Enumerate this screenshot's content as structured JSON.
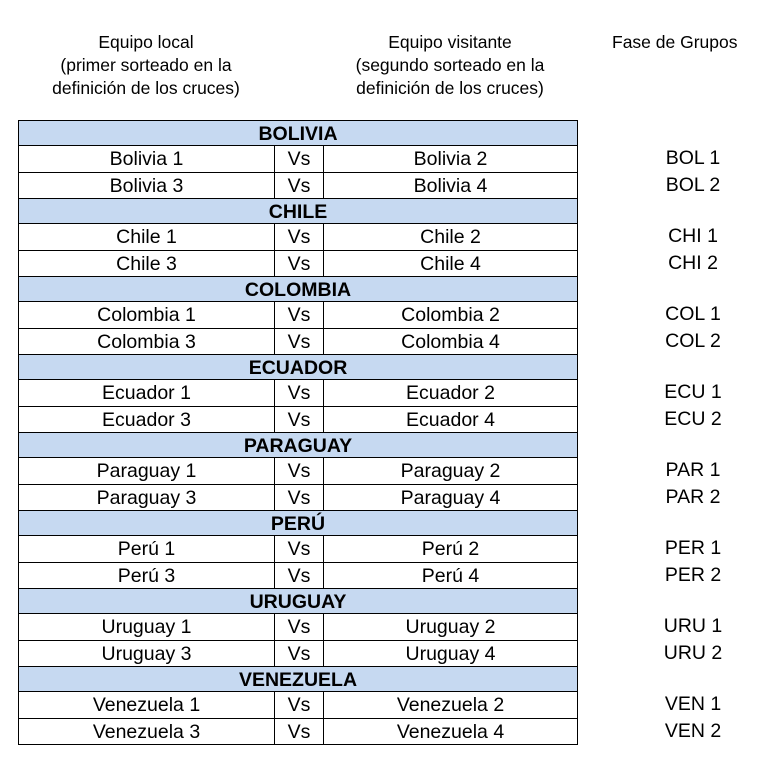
{
  "headers": {
    "home": [
      "Equipo local",
      "(primer sorteado en la",
      "definición de los cruces)"
    ],
    "away": [
      "Equipo visitante",
      "(segundo sorteado en la",
      "definición de los cruces)"
    ],
    "group": [
      "Fase de Grupos"
    ]
  },
  "vs_label": "Vs",
  "sections": [
    {
      "name": "BOLIVIA",
      "matches": [
        {
          "home": "Bolivia 1",
          "away": "Bolivia 2",
          "group": "BOL 1"
        },
        {
          "home": "Bolivia 3",
          "away": "Bolivia 4",
          "group": "BOL 2"
        }
      ]
    },
    {
      "name": "CHILE",
      "matches": [
        {
          "home": "Chile 1",
          "away": "Chile 2",
          "group": "CHI 1"
        },
        {
          "home": "Chile 3",
          "away": "Chile 4",
          "group": "CHI 2"
        }
      ]
    },
    {
      "name": "COLOMBIA",
      "matches": [
        {
          "home": "Colombia 1",
          "away": "Colombia 2",
          "group": "COL 1"
        },
        {
          "home": "Colombia 3",
          "away": "Colombia 4",
          "group": "COL 2"
        }
      ]
    },
    {
      "name": "ECUADOR",
      "matches": [
        {
          "home": "Ecuador 1",
          "away": "Ecuador 2",
          "group": "ECU 1"
        },
        {
          "home": "Ecuador 3",
          "away": "Ecuador 4",
          "group": "ECU 2"
        }
      ]
    },
    {
      "name": "PARAGUAY",
      "matches": [
        {
          "home": "Paraguay 1",
          "away": "Paraguay 2",
          "group": "PAR 1"
        },
        {
          "home": "Paraguay 3",
          "away": "Paraguay 4",
          "group": "PAR 2"
        }
      ]
    },
    {
      "name": "PERÚ",
      "matches": [
        {
          "home": "Perú 1",
          "away": "Perú 2",
          "group": "PER 1"
        },
        {
          "home": "Perú 3",
          "away": "Perú 4",
          "group": "PER 2"
        }
      ]
    },
    {
      "name": "URUGUAY",
      "matches": [
        {
          "home": "Uruguay 1",
          "away": "Uruguay 2",
          "group": "URU 1"
        },
        {
          "home": "Uruguay 3",
          "away": "Uruguay 4",
          "group": "URU 2"
        }
      ]
    },
    {
      "name": "VENEZUELA",
      "matches": [
        {
          "home": "Venezuela 1",
          "away": "Venezuela 2",
          "group": "VEN 1"
        },
        {
          "home": "Venezuela 3",
          "away": "Venezuela 4",
          "group": "VEN 2"
        }
      ]
    }
  ],
  "colors": {
    "section_fill": "#c6d9f1",
    "border": "#000000"
  }
}
